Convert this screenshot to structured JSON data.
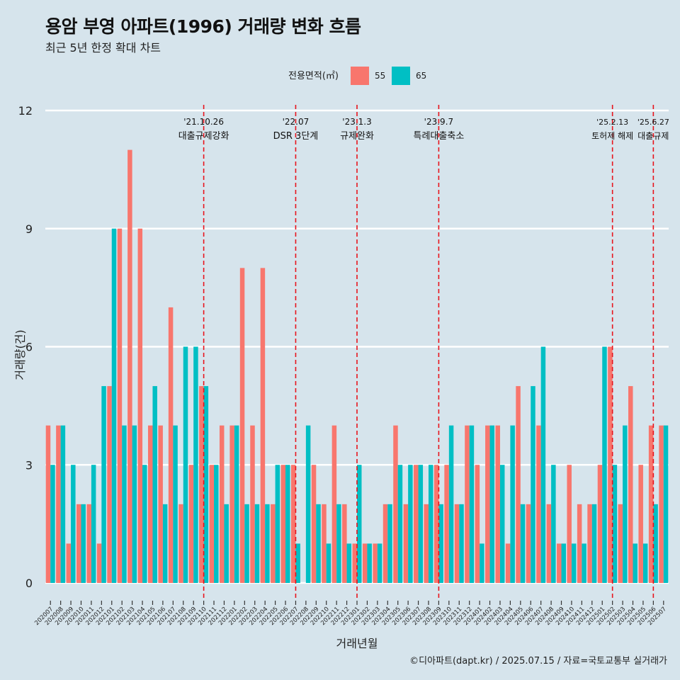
{
  "title": "용암 부영 아파트(1996) 거래량 변화 흐름",
  "subtitle": "최근 5년 한정 확대 차트",
  "caption": "©디아파트(dapt.kr) / 2025.07.15 / 자료=국토교통부 실거래가",
  "colors": {
    "s55": "#f8766d",
    "s65": "#00bfc4",
    "background": "#d6e4ec",
    "grid": "#ffffff",
    "vline": "#e8141c"
  },
  "chart_data": {
    "type": "bar",
    "title": "용암 부영 아파트(1996) 거래량 변화 흐름",
    "xlabel": "거래년월",
    "ylabel": "거래량(건)",
    "ylim": [
      0,
      12
    ],
    "yticks": [
      0,
      3,
      6,
      9,
      12
    ],
    "legend_title": "전용면적(㎡)",
    "legend_position": "top",
    "categories": [
      "202007",
      "202008",
      "202009",
      "202010",
      "202011",
      "202012",
      "202101",
      "202102",
      "202103",
      "202104",
      "202105",
      "202106",
      "202107",
      "202108",
      "202109",
      "202110",
      "202111",
      "202112",
      "202201",
      "202202",
      "202203",
      "202204",
      "202205",
      "202206",
      "202207",
      "202208",
      "202209",
      "202210",
      "202211",
      "202212",
      "202301",
      "202302",
      "202303",
      "202304",
      "202305",
      "202306",
      "202307",
      "202308",
      "202309",
      "202310",
      "202311",
      "202312",
      "202401",
      "202402",
      "202403",
      "202404",
      "202405",
      "202406",
      "202407",
      "202408",
      "202409",
      "202410",
      "202411",
      "202412",
      "202501",
      "202502",
      "202503",
      "202504",
      "202505",
      "202506",
      "202507"
    ],
    "series": [
      {
        "name": "55",
        "values": [
          4,
          4,
          1,
          2,
          2,
          1,
          5,
          9,
          11,
          9,
          4,
          4,
          7,
          2,
          3,
          5,
          3,
          4,
          4,
          8,
          4,
          8,
          2,
          3,
          3,
          null,
          3,
          2,
          4,
          2,
          1,
          1,
          1,
          2,
          4,
          2,
          3,
          2,
          3,
          3,
          2,
          4,
          3,
          4,
          4,
          1,
          5,
          2,
          4,
          2,
          1,
          3,
          2,
          2,
          3,
          6,
          2,
          5,
          3,
          4,
          4
        ]
      },
      {
        "name": "65",
        "values": [
          3,
          4,
          3,
          2,
          3,
          5,
          9,
          4,
          4,
          3,
          5,
          2,
          4,
          6,
          6,
          5,
          3,
          2,
          4,
          2,
          2,
          2,
          3,
          3,
          1,
          4,
          2,
          1,
          2,
          1,
          3,
          1,
          1,
          2,
          3,
          3,
          3,
          3,
          2,
          4,
          2,
          4,
          1,
          4,
          3,
          4,
          2,
          5,
          6,
          3,
          1,
          1,
          1,
          2,
          6,
          3,
          4,
          1,
          1,
          2,
          4
        ]
      }
    ],
    "events": [
      {
        "date": "'21.10.26",
        "label": "대출규제강화",
        "month": "202110"
      },
      {
        "date": "'22.07",
        "label": "DSR 3단계",
        "month": "202207"
      },
      {
        "date": "'23.1.3",
        "label": "규제완화",
        "month": "202301"
      },
      {
        "date": "'23.9.7",
        "label": "특례대출축소",
        "month": "202309"
      },
      {
        "date": "'25.2.13",
        "label": "토허제 해제",
        "month": "202502"
      },
      {
        "date": "'25.6.27",
        "label": "대출규제",
        "month": "202506"
      }
    ]
  }
}
